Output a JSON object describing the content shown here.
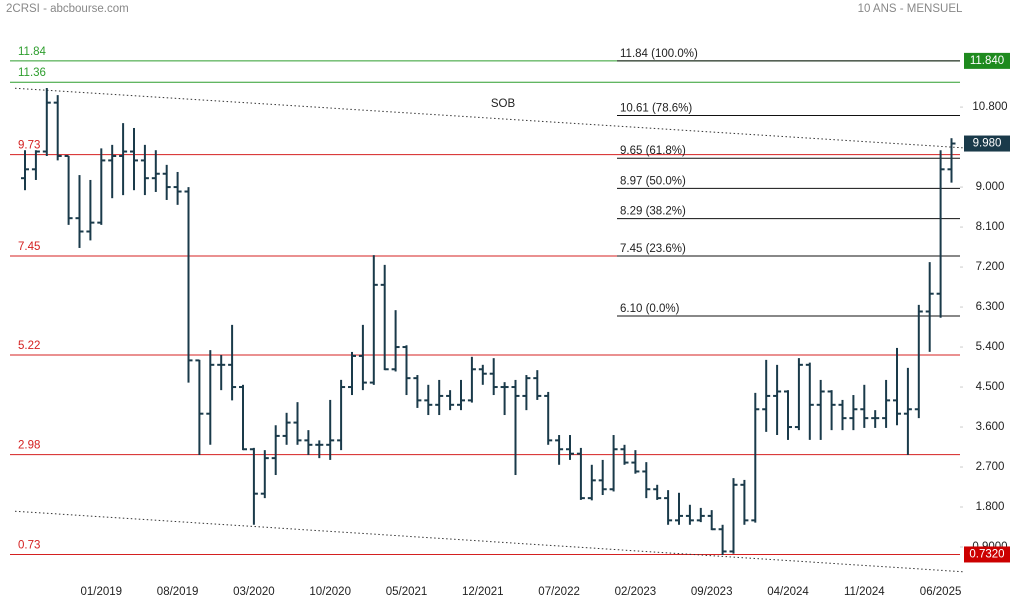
{
  "chart_data": {
    "type": "ohlc",
    "title": "2CRSI - abcbourse.com",
    "subtitle": "10 ANS - MENSUEL",
    "color": "#1a3a4a",
    "categories": [
      null,
      null,
      null,
      null,
      null,
      null,
      null,
      "01/2019",
      null,
      null,
      null,
      null,
      null,
      null,
      "08/2019",
      null,
      null,
      null,
      null,
      null,
      null,
      "03/2020",
      null,
      null,
      null,
      null,
      null,
      null,
      "10/2020",
      null,
      null,
      null,
      null,
      null,
      null,
      "05/2021",
      null,
      null,
      null,
      null,
      null,
      null,
      "12/2021",
      null,
      null,
      null,
      null,
      null,
      null,
      "07/2022",
      null,
      null,
      null,
      null,
      null,
      null,
      "02/2023",
      null,
      null,
      null,
      null,
      null,
      null,
      "09/2023",
      null,
      null,
      null,
      null,
      null,
      null,
      "04/2024",
      null,
      null,
      null,
      null,
      null,
      null,
      "11/2024",
      null,
      null,
      null,
      null,
      null,
      null,
      "06/2025",
      null
    ],
    "open": [
      9.2,
      9.4,
      9.8,
      10.9,
      9.7,
      8.3,
      8.0,
      8.2,
      9.6,
      9.7,
      9.8,
      9.6,
      9.2,
      9.3,
      9.0,
      8.9,
      5.1,
      3.9,
      5.0,
      5.0,
      4.5,
      3.1,
      2.1,
      2.9,
      3.4,
      3.7,
      3.3,
      3.2,
      3.2,
      3.3,
      4.5,
      5.2,
      4.6,
      6.8,
      4.9,
      5.4,
      4.7,
      4.2,
      4.1,
      4.3,
      4.1,
      4.2,
      4.9,
      4.8,
      4.5,
      4.5,
      4.3,
      4.7,
      4.3,
      3.3,
      3.1,
      3.0,
      2.0,
      2.4,
      2.2,
      3.1,
      2.8,
      2.6,
      2.2,
      2.0,
      1.5,
      1.6,
      1.5,
      1.6,
      1.3,
      0.8,
      2.3,
      1.5,
      4.0,
      4.3,
      4.4,
      3.6,
      5.0,
      4.1,
      4.4,
      4.1,
      3.8,
      4.0,
      3.8,
      3.8,
      4.2,
      3.9,
      4.0,
      6.2,
      6.6,
      9.4
    ],
    "high": [
      9.83,
      9.83,
      11.23,
      11.07,
      9.7,
      9.27,
      9.16,
      9.87,
      9.95,
      10.44,
      10.33,
      9.95,
      9.83,
      9.5,
      9.34,
      9.0,
      5.11,
      5.33,
      5.22,
      5.9,
      4.55,
      3.13,
      3.08,
      3.64,
      3.92,
      4.16,
      3.53,
      3.3,
      4.21,
      4.66,
      5.29,
      5.9,
      7.47,
      7.25,
      6.23,
      5.44,
      4.77,
      4.55,
      4.66,
      4.43,
      4.66,
      5.18,
      5.0,
      5.15,
      4.61,
      4.66,
      4.77,
      4.88,
      4.39,
      3.42,
      3.42,
      3.13,
      2.75,
      2.86,
      3.42,
      3.2,
      3.08,
      2.81,
      2.3,
      2.18,
      2.12,
      1.85,
      1.78,
      1.73,
      1.4,
      2.45,
      2.41,
      4.37,
      5.11,
      5.0,
      4.43,
      5.15,
      5.05,
      4.66,
      4.43,
      4.21,
      4.32,
      4.55,
      3.98,
      4.66,
      5.38,
      4.93,
      6.35,
      7.31,
      9.83,
      10.1
    ],
    "low": [
      8.93,
      9.16,
      9.7,
      9.6,
      8.15,
      7.63,
      7.8,
      8.15,
      8.75,
      8.82,
      8.93,
      8.82,
      8.89,
      8.71,
      8.6,
      4.6,
      2.97,
      3.2,
      4.43,
      4.2,
      3.08,
      1.4,
      2.0,
      2.52,
      3.2,
      3.2,
      2.97,
      2.9,
      2.86,
      3.08,
      4.32,
      4.43,
      4.55,
      4.88,
      4.85,
      4.32,
      4.03,
      3.87,
      3.87,
      3.98,
      3.98,
      4.15,
      4.55,
      4.32,
      3.87,
      2.52,
      3.98,
      4.21,
      3.2,
      2.75,
      2.86,
      1.96,
      1.95,
      2.07,
      2.15,
      2.75,
      2.55,
      2.0,
      1.96,
      1.4,
      1.4,
      1.4,
      1.46,
      1.28,
      0.72,
      0.75,
      1.4,
      1.45,
      3.49,
      3.42,
      3.31,
      3.53,
      3.31,
      3.31,
      3.53,
      3.53,
      3.53,
      3.58,
      3.58,
      3.58,
      3.64,
      2.97,
      3.8,
      5.29,
      6.06,
      9.1
    ],
    "close": [
      9.4,
      9.8,
      10.9,
      9.7,
      8.3,
      8.0,
      8.2,
      9.6,
      9.7,
      9.8,
      9.6,
      9.2,
      9.3,
      9.0,
      8.9,
      5.1,
      3.9,
      5.0,
      5.0,
      4.5,
      3.1,
      2.1,
      2.9,
      3.4,
      3.7,
      3.3,
      3.2,
      3.2,
      3.3,
      4.5,
      5.2,
      4.6,
      6.8,
      4.9,
      5.4,
      4.7,
      4.2,
      4.1,
      4.3,
      4.1,
      4.2,
      4.9,
      4.8,
      4.5,
      4.5,
      4.3,
      4.7,
      4.3,
      3.3,
      3.1,
      3.0,
      2.0,
      2.4,
      2.2,
      3.1,
      2.8,
      2.6,
      2.2,
      2.0,
      1.5,
      1.6,
      1.5,
      1.6,
      1.3,
      0.8,
      2.3,
      1.5,
      4.0,
      4.3,
      4.4,
      3.6,
      5.0,
      4.1,
      4.4,
      4.1,
      3.8,
      4.0,
      3.8,
      3.8,
      4.2,
      3.9,
      4.0,
      6.2,
      6.6,
      9.4,
      9.98
    ],
    "ylim": [
      0.27,
      12.76
    ],
    "yticks": [
      {
        "value": 0.9,
        "label": "0.9000"
      },
      {
        "value": 1.8,
        "label": "1.800"
      },
      {
        "value": 2.7,
        "label": "2.700"
      },
      {
        "value": 3.6,
        "label": "3.600"
      },
      {
        "value": 4.5,
        "label": "4.500"
      },
      {
        "value": 5.4,
        "label": "5.400"
      },
      {
        "value": 6.3,
        "label": "6.300"
      },
      {
        "value": 7.2,
        "label": "7.200"
      },
      {
        "value": 8.1,
        "label": "8.100"
      },
      {
        "value": 9.0,
        "label": "9.000"
      },
      {
        "value": 10.8,
        "label": "10.800"
      }
    ],
    "levels": [
      {
        "value": 11.84,
        "color": "#2e9e2e"
      },
      {
        "value": 11.36,
        "color": "#2e9e2e"
      },
      {
        "value": 9.73,
        "color": "#d42020"
      },
      {
        "value": 7.45,
        "color": "#d42020"
      },
      {
        "value": 5.22,
        "color": "#d42020"
      },
      {
        "value": 2.98,
        "color": "#d42020"
      },
      {
        "value": 0.73,
        "color": "#d42020"
      }
    ],
    "fibonacci": [
      {
        "value": 11.84,
        "label": "11.84  (100.0%)"
      },
      {
        "value": 10.61,
        "label": "10.61  (78.6%)"
      },
      {
        "value": 9.65,
        "label": "9.65  (61.8%)"
      },
      {
        "value": 8.97,
        "label": "8.97  (50.0%)"
      },
      {
        "value": 8.29,
        "label": "8.29  (38.2%)"
      },
      {
        "value": 7.45,
        "label": "7.45  (23.6%)"
      },
      {
        "value": 6.1,
        "label": "6.10  (0.0%)"
      }
    ],
    "price_boxes": [
      {
        "value": 11.84,
        "label": "11.840",
        "color": "#1e8a1e"
      },
      {
        "value": 9.98,
        "label": "9.980",
        "color": "#1a3a4a"
      },
      {
        "value": 0.732,
        "label": "0.7320",
        "color": "#cc0000"
      }
    ],
    "trendlines": [
      {
        "label": "SOB",
        "values": [
          11.21,
          9.9
        ]
      },
      {
        "values": [
          1.69,
          0.36
        ]
      }
    ]
  }
}
